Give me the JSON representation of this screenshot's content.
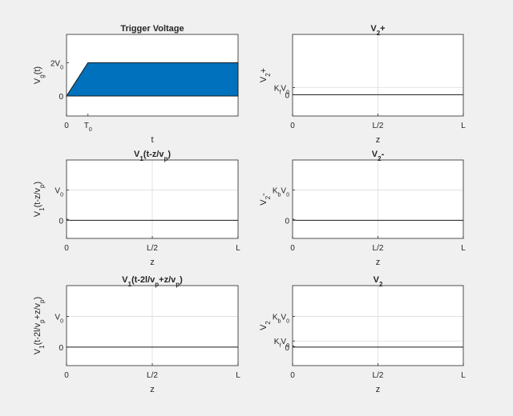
{
  "figure": {
    "background": "#f0f0f0",
    "axes_background": "#ffffff",
    "fill_color": "#0072bd",
    "line_color": "#262626",
    "grid_color": "#dcdcdc"
  },
  "chart_data": [
    {
      "id": "trigger",
      "type": "area",
      "title": [
        [
          "t",
          "Trigger Voltage"
        ]
      ],
      "xlabel": [
        [
          "t",
          "t"
        ]
      ],
      "ylabel": [
        [
          "t",
          "V"
        ],
        [
          "sub",
          "g"
        ],
        [
          "t",
          "(t)"
        ]
      ],
      "xlim": [
        0,
        8
      ],
      "ylim": [
        -1.2,
        3.7
      ],
      "grid": false,
      "xticks": [
        {
          "v": 0,
          "label": [
            [
              "t",
              "0"
            ]
          ]
        },
        {
          "v": 1,
          "label": [
            [
              "t",
              "T"
            ],
            [
              "sub",
              "0"
            ]
          ]
        }
      ],
      "yticks": [
        {
          "v": 0,
          "label": [
            [
              "t",
              "0"
            ]
          ]
        },
        {
          "v": 2,
          "label": [
            [
              "t",
              "2V"
            ],
            [
              "sub",
              "0"
            ]
          ]
        }
      ],
      "series": [
        {
          "x": [
            0,
            1,
            8
          ],
          "y": [
            0,
            2,
            2
          ],
          "fill": true
        }
      ]
    },
    {
      "id": "v2plus",
      "type": "line",
      "title": [
        [
          "t",
          "V"
        ],
        [
          "sub",
          "2"
        ],
        [
          "t",
          "+"
        ]
      ],
      "xlabel": [
        [
          "t",
          "z"
        ]
      ],
      "ylabel": [
        [
          "t",
          "V"
        ],
        [
          "sub",
          "2"
        ],
        [
          "t",
          "+"
        ]
      ],
      "xlim": [
        0,
        1
      ],
      "ylim": [
        -0.6,
        1.7
      ],
      "grid": true,
      "xticks": [
        {
          "v": 0,
          "label": [
            [
              "t",
              "0"
            ]
          ]
        },
        {
          "v": 0.5,
          "label": [
            [
              "t",
              "L/2"
            ]
          ]
        },
        {
          "v": 1,
          "label": [
            [
              "t",
              "L"
            ]
          ]
        }
      ],
      "yticks": [
        {
          "v": 0,
          "label": [
            [
              "t",
              "0"
            ]
          ]
        },
        {
          "v": 0.2,
          "label": [
            [
              "t",
              "K"
            ],
            [
              "sub",
              "f"
            ],
            [
              "t",
              "V"
            ],
            [
              "sub",
              "0"
            ]
          ]
        }
      ],
      "series": [
        {
          "x": [
            0,
            1
          ],
          "y": [
            0,
            0
          ]
        }
      ]
    },
    {
      "id": "v1fwd",
      "type": "line",
      "title": [
        [
          "t",
          "V"
        ],
        [
          "sub",
          "1"
        ],
        [
          "t",
          "(t-z/v"
        ],
        [
          "sub",
          "p"
        ],
        [
          "t",
          ")"
        ]
      ],
      "xlabel": [
        [
          "t",
          "z"
        ]
      ],
      "ylabel": [
        [
          "t",
          "V"
        ],
        [
          "sub",
          "1"
        ],
        [
          "t",
          "(t-z/v"
        ],
        [
          "sub",
          "p"
        ],
        [
          "t",
          ")"
        ]
      ],
      "xlim": [
        0,
        1
      ],
      "ylim": [
        -0.6,
        2.0
      ],
      "grid": true,
      "xticks": [
        {
          "v": 0,
          "label": [
            [
              "t",
              "0"
            ]
          ]
        },
        {
          "v": 0.5,
          "label": [
            [
              "t",
              "L/2"
            ]
          ]
        },
        {
          "v": 1,
          "label": [
            [
              "t",
              "L"
            ]
          ]
        }
      ],
      "yticks": [
        {
          "v": 0,
          "label": [
            [
              "t",
              "0"
            ]
          ]
        },
        {
          "v": 1,
          "label": [
            [
              "t",
              "V"
            ],
            [
              "sub",
              "0"
            ]
          ]
        }
      ],
      "series": [
        {
          "x": [
            0,
            0.005,
            0.012,
            0.02,
            1
          ],
          "y": [
            0.05,
            0.03,
            0.01,
            0,
            0
          ]
        }
      ]
    },
    {
      "id": "v2minus",
      "type": "line",
      "title": [
        [
          "t",
          "V"
        ],
        [
          "sub",
          "2"
        ],
        [
          "t",
          "-"
        ]
      ],
      "xlabel": [
        [
          "t",
          "z"
        ]
      ],
      "ylabel": [
        [
          "t",
          "V"
        ],
        [
          "sub",
          "2"
        ],
        [
          "t",
          "-"
        ]
      ],
      "xlim": [
        0,
        1
      ],
      "ylim": [
        -0.6,
        2.0
      ],
      "grid": true,
      "xticks": [
        {
          "v": 0,
          "label": [
            [
              "t",
              "0"
            ]
          ]
        },
        {
          "v": 0.5,
          "label": [
            [
              "t",
              "L/2"
            ]
          ]
        },
        {
          "v": 1,
          "label": [
            [
              "t",
              "L"
            ]
          ]
        }
      ],
      "yticks": [
        {
          "v": 0,
          "label": [
            [
              "t",
              "0"
            ]
          ]
        },
        {
          "v": 1,
          "label": [
            [
              "t",
              "K"
            ],
            [
              "sub",
              "b"
            ],
            [
              "t",
              "V"
            ],
            [
              "sub",
              "0"
            ]
          ]
        }
      ],
      "series": [
        {
          "x": [
            0,
            0.005,
            0.012,
            0.02,
            1
          ],
          "y": [
            0.05,
            0.03,
            0.01,
            0,
            0
          ]
        }
      ]
    },
    {
      "id": "v1refl",
      "type": "line",
      "title": [
        [
          "t",
          "V"
        ],
        [
          "sub",
          "1"
        ],
        [
          "t",
          "(t-2l/v"
        ],
        [
          "sub",
          "p"
        ],
        [
          "t",
          "+z/v"
        ],
        [
          "sub",
          "p"
        ],
        [
          "t",
          ")"
        ]
      ],
      "xlabel": [
        [
          "t",
          "z"
        ]
      ],
      "ylabel": [
        [
          "t",
          "V"
        ],
        [
          "sub",
          "1"
        ],
        [
          "t",
          "(t-2l/v"
        ],
        [
          "sub",
          "p"
        ],
        [
          "t",
          "+z/v"
        ],
        [
          "sub",
          "p"
        ],
        [
          "t",
          ")"
        ]
      ],
      "xlim": [
        0,
        1
      ],
      "ylim": [
        -0.6,
        2.0
      ],
      "grid": true,
      "xticks": [
        {
          "v": 0,
          "label": [
            [
              "t",
              "0"
            ]
          ]
        },
        {
          "v": 0.5,
          "label": [
            [
              "t",
              "L/2"
            ]
          ]
        },
        {
          "v": 1,
          "label": [
            [
              "t",
              "L"
            ]
          ]
        }
      ],
      "yticks": [
        {
          "v": 0,
          "label": [
            [
              "t",
              "0"
            ]
          ]
        },
        {
          "v": 1,
          "label": [
            [
              "t",
              "V"
            ],
            [
              "sub",
              "0"
            ]
          ]
        }
      ],
      "series": [
        {
          "x": [
            0,
            1
          ],
          "y": [
            0,
            0
          ]
        }
      ]
    },
    {
      "id": "v2",
      "type": "line",
      "title": [
        [
          "t",
          "V"
        ],
        [
          "sub",
          "2"
        ]
      ],
      "xlabel": [
        [
          "t",
          "z"
        ]
      ],
      "ylabel": [
        [
          "t",
          "V"
        ],
        [
          "sub",
          "2"
        ]
      ],
      "xlim": [
        0,
        1
      ],
      "ylim": [
        -0.6,
        2.0
      ],
      "grid": true,
      "xticks": [
        {
          "v": 0,
          "label": [
            [
              "t",
              "0"
            ]
          ]
        },
        {
          "v": 0.5,
          "label": [
            [
              "t",
              "L/2"
            ]
          ]
        },
        {
          "v": 1,
          "label": [
            [
              "t",
              "L"
            ]
          ]
        }
      ],
      "yticks": [
        {
          "v": 0,
          "label": [
            [
              "t",
              "0"
            ]
          ]
        },
        {
          "v": 0.2,
          "label": [
            [
              "t",
              "K"
            ],
            [
              "sub",
              "f"
            ],
            [
              "t",
              "V"
            ],
            [
              "sub",
              "0"
            ]
          ]
        },
        {
          "v": 1,
          "label": [
            [
              "t",
              "K"
            ],
            [
              "sub",
              "b"
            ],
            [
              "t",
              "V"
            ],
            [
              "sub",
              "0"
            ]
          ]
        }
      ],
      "series": [
        {
          "x": [
            0,
            0.005,
            0.012,
            0.02,
            1
          ],
          "y": [
            0.05,
            0.03,
            0.01,
            0,
            0
          ]
        }
      ]
    }
  ]
}
